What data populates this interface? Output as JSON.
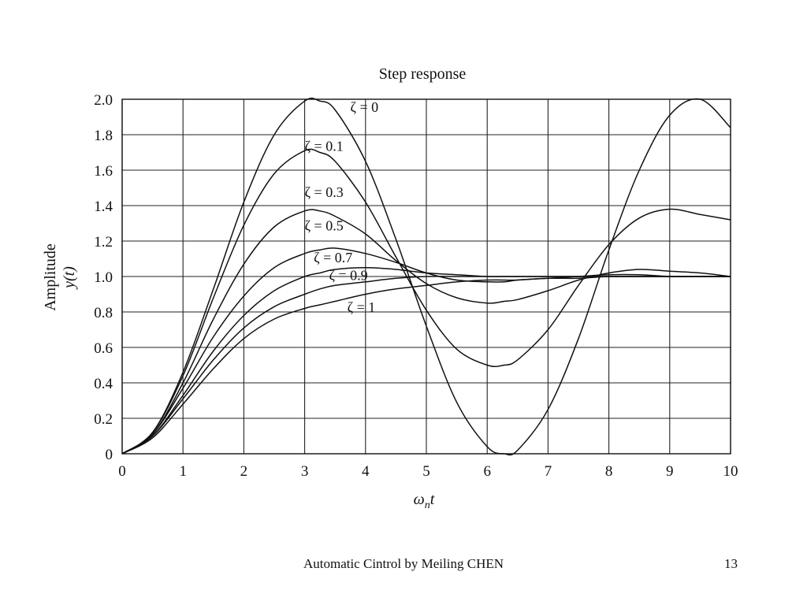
{
  "chart_data": {
    "type": "line",
    "title": "Step response",
    "xlabel": "ωnt",
    "ylabel_line1": "Amplitude",
    "ylabel_line2": "y(t)",
    "xlim": [
      0,
      10
    ],
    "ylim": [
      0,
      2
    ],
    "x_ticks": [
      0,
      1,
      2,
      3,
      4,
      5,
      6,
      7,
      8,
      9,
      10
    ],
    "y_ticks": [
      0,
      0.2,
      0.4,
      0.6,
      0.8,
      1.0,
      1.2,
      1.4,
      1.6,
      1.8,
      2.0
    ],
    "y_tick_labels": [
      "0",
      "0.2",
      "0.4",
      "0.6",
      "0.8",
      "1.0",
      "1.2",
      "1.4",
      "1.6",
      "1.8",
      "2.0"
    ],
    "grid": true,
    "x": [
      0,
      0.5,
      1,
      1.5,
      2,
      2.5,
      3,
      3.25,
      3.5,
      4,
      4.5,
      5,
      5.5,
      6,
      6.28,
      6.5,
      7,
      7.5,
      8,
      8.5,
      9,
      9.5,
      10
    ],
    "series": [
      {
        "name": "ζ = 0",
        "values": [
          0,
          0.12,
          0.46,
          0.93,
          1.42,
          1.8,
          1.99,
          1.99,
          1.94,
          1.65,
          1.21,
          0.72,
          0.29,
          0.04,
          0.0,
          0.02,
          0.25,
          0.65,
          1.15,
          1.6,
          1.91,
          2.0,
          1.84
        ]
      },
      {
        "name": "ζ = 0.1",
        "values": [
          0,
          0.12,
          0.44,
          0.88,
          1.29,
          1.58,
          1.71,
          1.7,
          1.65,
          1.42,
          1.11,
          0.81,
          0.59,
          0.5,
          0.5,
          0.53,
          0.7,
          0.95,
          1.18,
          1.33,
          1.38,
          1.35,
          1.32
        ]
      },
      {
        "name": "ζ = 0.3",
        "values": [
          0,
          0.11,
          0.4,
          0.76,
          1.07,
          1.28,
          1.37,
          1.37,
          1.34,
          1.24,
          1.09,
          0.96,
          0.88,
          0.85,
          0.86,
          0.87,
          0.92,
          0.98,
          1.02,
          1.04,
          1.03,
          1.02,
          1.0
        ]
      },
      {
        "name": "ζ = 0.5",
        "values": [
          0,
          0.11,
          0.37,
          0.66,
          0.89,
          1.05,
          1.13,
          1.15,
          1.16,
          1.13,
          1.08,
          1.02,
          0.98,
          0.97,
          0.97,
          0.98,
          0.99,
          1.0,
          1.01,
          1.01,
          1.0,
          1.0,
          1.0
        ]
      },
      {
        "name": "ζ = 0.7",
        "values": [
          0,
          0.1,
          0.33,
          0.58,
          0.78,
          0.92,
          1.0,
          1.02,
          1.04,
          1.05,
          1.04,
          1.02,
          1.01,
          1.0,
          1.0,
          1.0,
          1.0,
          1.0,
          1.0,
          1.0,
          1.0,
          1.0,
          1.0
        ]
      },
      {
        "name": "ζ = 0.9",
        "values": [
          0,
          0.1,
          0.31,
          0.53,
          0.71,
          0.83,
          0.9,
          0.93,
          0.95,
          0.97,
          0.99,
          1.0,
          1.0,
          1.0,
          1.0,
          1.0,
          1.0,
          1.0,
          1.0,
          1.0,
          1.0,
          1.0,
          1.0
        ]
      },
      {
        "name": "ζ = 1",
        "values": [
          0,
          0.09,
          0.28,
          0.48,
          0.65,
          0.76,
          0.82,
          0.84,
          0.86,
          0.9,
          0.93,
          0.95,
          0.97,
          0.98,
          0.98,
          0.98,
          0.99,
          0.99,
          1.0,
          1.0,
          1.0,
          1.0,
          1.0
        ]
      }
    ],
    "annotations": [
      {
        "text": "ζ = 0",
        "x": 3.75,
        "y": 1.93
      },
      {
        "text": "ζ = 0.1",
        "x": 3.0,
        "y": 1.71
      },
      {
        "text": "ζ = 0.3",
        "x": 3.0,
        "y": 1.45
      },
      {
        "text": "ζ = 0.5",
        "x": 3.0,
        "y": 1.26
      },
      {
        "text": "ζ = 0.7",
        "x": 3.15,
        "y": 1.08
      },
      {
        "text": "ζ = 0.9",
        "x": 3.4,
        "y": 0.98
      },
      {
        "text": "ζ = 1",
        "x": 3.7,
        "y": 0.8
      }
    ]
  },
  "footer": {
    "caption": "Automatic Cintrol by Meiling CHEN",
    "page_number": "13"
  }
}
